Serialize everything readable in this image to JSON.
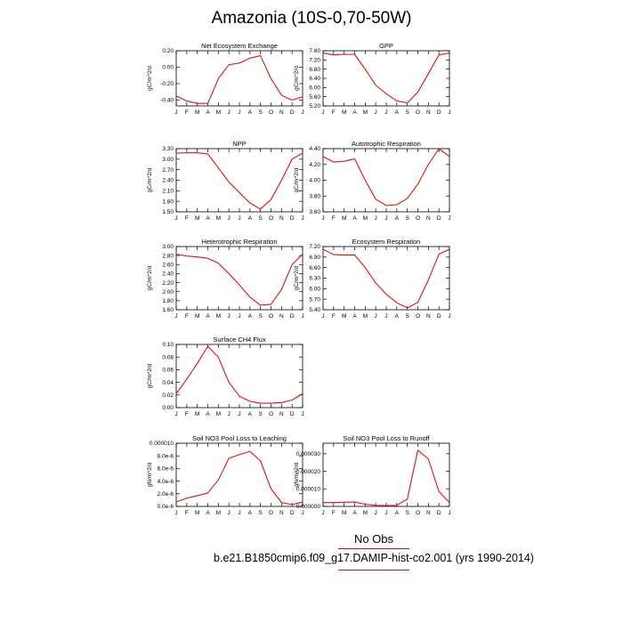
{
  "main_title": "Amazonia (10S-0,70-50W)",
  "legend_label": "No Obs",
  "caption": "b.e21.B1850cmip6.f09_g17.DAMIP-hist-co2.001 (yrs 1990-2014)",
  "colors": {
    "series_line": "#e01010",
    "axes": "#000000"
  },
  "chart_data": [
    {
      "type": "line",
      "title": "Net Ecosystem Exchange",
      "ylabel": "gC/m^2/d",
      "x": [
        "J",
        "F",
        "M",
        "A",
        "M",
        "J",
        "J",
        "A",
        "S",
        "O",
        "N",
        "D",
        "J"
      ],
      "ylim": [
        -0.47,
        0.2
      ],
      "yticks": [
        "0.20",
        "0.00",
        "-0.20",
        "-0.40"
      ],
      "ytick_values": [
        0.2,
        0.0,
        -0.2,
        -0.4
      ],
      "series": [
        {
          "values": [
            -0.35,
            -0.41,
            -0.44,
            -0.44,
            -0.14,
            0.03,
            0.05,
            0.11,
            0.14,
            -0.14,
            -0.34,
            -0.4,
            -0.36
          ]
        }
      ]
    },
    {
      "type": "line",
      "title": "GPP",
      "ylabel": "gC/m^2/d",
      "x": [
        "J",
        "F",
        "M",
        "A",
        "M",
        "J",
        "J",
        "A",
        "S",
        "O",
        "N",
        "D",
        "J"
      ],
      "ylim": [
        5.2,
        7.6
      ],
      "yticks": [
        "7.60",
        "7.20",
        "6.80",
        "6.40",
        "6.00",
        "5.60",
        "5.20"
      ],
      "ytick_values": [
        7.6,
        7.2,
        6.8,
        6.4,
        6.0,
        5.6,
        5.2
      ],
      "series": [
        {
          "values": [
            7.5,
            7.42,
            7.44,
            7.44,
            6.8,
            6.1,
            5.73,
            5.42,
            5.33,
            5.8,
            6.6,
            7.42,
            7.5
          ]
        }
      ]
    },
    {
      "type": "line",
      "title": "NPP",
      "ylabel": "gC/m^2/d",
      "x": [
        "J",
        "F",
        "M",
        "A",
        "M",
        "J",
        "J",
        "A",
        "S",
        "O",
        "N",
        "D",
        "J"
      ],
      "ylim": [
        1.5,
        3.3
      ],
      "yticks": [
        "3.30",
        "3.00",
        "2.70",
        "2.40",
        "2.10",
        "1.80",
        "1.50"
      ],
      "ytick_values": [
        3.3,
        3.0,
        2.7,
        2.4,
        2.1,
        1.8,
        1.5
      ],
      "series": [
        {
          "values": [
            3.17,
            3.18,
            3.18,
            3.15,
            2.75,
            2.35,
            2.05,
            1.75,
            1.58,
            1.85,
            2.4,
            3.0,
            3.17
          ]
        }
      ]
    },
    {
      "type": "line",
      "title": "Autotrophic Respiration",
      "ylabel": "gC/m^2/d",
      "x": [
        "J",
        "F",
        "M",
        "A",
        "M",
        "J",
        "J",
        "A",
        "S",
        "O",
        "N",
        "D",
        "J"
      ],
      "ylim": [
        3.6,
        4.4
      ],
      "yticks": [
        "4.40",
        "4.20",
        "4.00",
        "3.80",
        "3.60"
      ],
      "ytick_values": [
        4.4,
        4.2,
        4.0,
        3.8,
        3.6
      ],
      "series": [
        {
          "values": [
            4.3,
            4.23,
            4.24,
            4.27,
            4.0,
            3.76,
            3.68,
            3.69,
            3.77,
            3.95,
            4.2,
            4.4,
            4.3
          ]
        }
      ]
    },
    {
      "type": "line",
      "title": "Heterotrophic Respiration",
      "ylabel": "gC/m^2/d",
      "x": [
        "J",
        "F",
        "M",
        "A",
        "M",
        "J",
        "J",
        "A",
        "S",
        "O",
        "N",
        "D",
        "J"
      ],
      "ylim": [
        1.6,
        3.0
      ],
      "yticks": [
        "3.00",
        "2.80",
        "2.60",
        "2.40",
        "2.20",
        "2.00",
        "1.80",
        "1.60"
      ],
      "ytick_values": [
        3.0,
        2.8,
        2.6,
        2.4,
        2.2,
        2.0,
        1.8,
        1.6
      ],
      "series": [
        {
          "values": [
            2.83,
            2.79,
            2.77,
            2.74,
            2.63,
            2.4,
            2.15,
            1.88,
            1.7,
            1.72,
            2.05,
            2.6,
            2.83
          ]
        }
      ]
    },
    {
      "type": "line",
      "title": "Ecosystem Respiration",
      "ylabel": "gC/m^2/d",
      "x": [
        "J",
        "F",
        "M",
        "A",
        "M",
        "J",
        "J",
        "A",
        "S",
        "O",
        "N",
        "D",
        "J"
      ],
      "ylim": [
        5.4,
        7.2
      ],
      "yticks": [
        "7.20",
        "6.90",
        "6.60",
        "6.30",
        "6.00",
        "5.70",
        "5.40"
      ],
      "ytick_values": [
        7.2,
        6.9,
        6.6,
        6.3,
        6.0,
        5.7,
        5.4
      ],
      "series": [
        {
          "values": [
            7.12,
            6.97,
            6.96,
            6.96,
            6.6,
            6.16,
            5.84,
            5.6,
            5.45,
            5.61,
            6.25,
            6.98,
            7.12
          ]
        }
      ]
    },
    {
      "type": "line",
      "title": "Surface CH4 Flux",
      "ylabel": "gC/m^2/d",
      "x": [
        "J",
        "F",
        "M",
        "A",
        "M",
        "J",
        "J",
        "A",
        "S",
        "O",
        "N",
        "D",
        "J"
      ],
      "ylim": [
        0.0,
        0.1
      ],
      "yticks": [
        "0.10",
        "0.08",
        "0.06",
        "0.04",
        "0.02",
        "0.00"
      ],
      "ytick_values": [
        0.1,
        0.08,
        0.06,
        0.04,
        0.02,
        0.0
      ],
      "series": [
        {
          "values": [
            0.022,
            0.045,
            0.07,
            0.097,
            0.08,
            0.04,
            0.018,
            0.01,
            0.007,
            0.007,
            0.008,
            0.012,
            0.022
          ]
        }
      ]
    },
    {
      "type": "line",
      "title": "Soil NO3 Pool Loss to Leaching",
      "ylabel": "gN/m^2/d",
      "x": [
        "J",
        "F",
        "M",
        "A",
        "M",
        "J",
        "J",
        "A",
        "S",
        "O",
        "N",
        "D",
        "J"
      ],
      "ylim": [
        0.0,
        1e-05
      ],
      "yticks": [
        "0.000010",
        "8.0e-6",
        "6.0e-6",
        "4.0e-6",
        "2.0e-6",
        "0.0e-6"
      ],
      "ytick_values": [
        1e-05,
        8e-06,
        6e-06,
        4e-06,
        2e-06,
        0.0
      ],
      "series": [
        {
          "values": [
            7e-07,
            1.3e-06,
            1.7e-06,
            2.1e-06,
            4.2e-06,
            7.6e-06,
            8.2e-06,
            8.7e-06,
            7.2e-06,
            2.8e-06,
            6e-07,
            3e-07,
            7e-07
          ]
        }
      ]
    },
    {
      "type": "line",
      "title": "Soil NO3 Pool Loss to Runoff",
      "ylabel": "gN/m^2/d",
      "x": [
        "J",
        "F",
        "M",
        "A",
        "M",
        "J",
        "J",
        "A",
        "S",
        "O",
        "N",
        "D",
        "J"
      ],
      "ylim": [
        0.0,
        3.6e-05
      ],
      "yticks": [
        "0.000030",
        "0.000020",
        "0.000010",
        "0.000000"
      ],
      "ytick_values": [
        3e-05,
        2e-05,
        1e-05,
        0.0
      ],
      "series": [
        {
          "values": [
            2.2e-06,
            2.2e-06,
            2.4e-06,
            2.5e-06,
            1.2e-06,
            6e-07,
            5e-07,
            6e-07,
            4.2e-06,
            3.2e-05,
            2.7e-05,
            8.5e-06,
            2.2e-06
          ]
        }
      ]
    }
  ]
}
